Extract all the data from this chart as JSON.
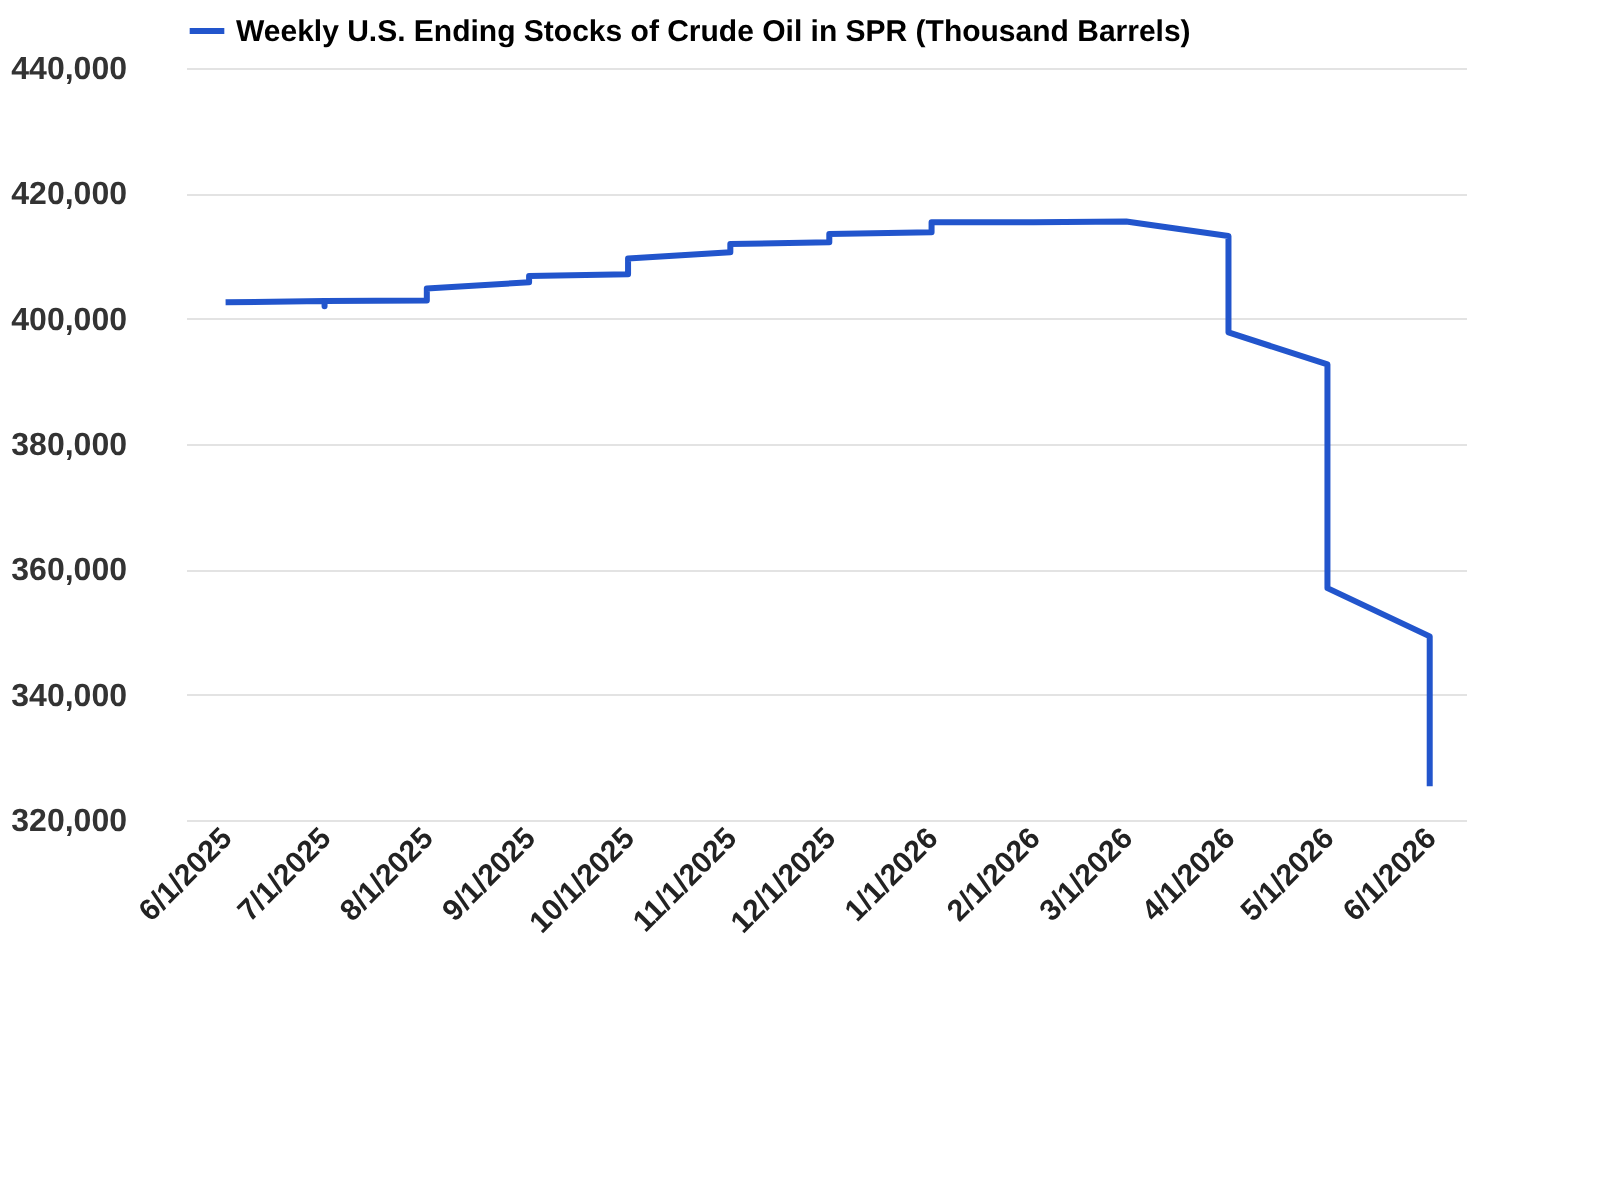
{
  "chart_data": {
    "type": "line",
    "legend": "top left",
    "grid": "y",
    "line_style": "solid",
    "marker": "none",
    "x": [
      "2025-06-01",
      "2025-07-01",
      "2025-07-01",
      "2025-07-01",
      "2025-08-01",
      "2025-08-01",
      "2025-09-01",
      "2025-09-01",
      "2025-10-01",
      "2025-10-01",
      "2025-11-01",
      "2025-11-01",
      "2025-12-01",
      "2025-12-01",
      "2026-01-01",
      "2026-01-01",
      "2026-02-01",
      "2026-03-01",
      "2026-04-01",
      "2026-04-01",
      "2026-05-01",
      "2026-05-01",
      "2026-06-01",
      "2026-06-01"
    ],
    "series": [
      {
        "name": "Weekly U.S. Ending Stocks of Crude Oil in SPR  (Thousand Barrels)",
        "color": "#2255cc",
        "values": [
          402600,
          402800,
          402000,
          402800,
          402900,
          404800,
          405800,
          406800,
          407100,
          409600,
          410600,
          411900,
          412200,
          413500,
          413800,
          415400,
          415400,
          415500,
          413200,
          397800,
          392700,
          357000,
          349300,
          325400
        ]
      }
    ],
    "xlim": [
      "2025-05-20",
      "2026-06-12"
    ],
    "xticks": [
      {
        "value": "2025-06-01",
        "label": "6/1/2025"
      },
      {
        "value": "2025-07-01",
        "label": "7/1/2025"
      },
      {
        "value": "2025-08-01",
        "label": "8/1/2025"
      },
      {
        "value": "2025-09-01",
        "label": "9/1/2025"
      },
      {
        "value": "2025-10-01",
        "label": "10/1/2025"
      },
      {
        "value": "2025-11-01",
        "label": "11/1/2025"
      },
      {
        "value": "2025-12-01",
        "label": "12/1/2025"
      },
      {
        "value": "2026-01-01",
        "label": "1/1/2026"
      },
      {
        "value": "2026-02-01",
        "label": "2/1/2026"
      },
      {
        "value": "2026-03-01",
        "label": "3/1/2026"
      },
      {
        "value": "2026-04-01",
        "label": "4/1/2026"
      },
      {
        "value": "2026-05-01",
        "label": "5/1/2026"
      },
      {
        "value": "2026-06-01",
        "label": "6/1/2026"
      }
    ],
    "ylim": [
      320000,
      440000
    ],
    "yticks": [
      {
        "value": 320000,
        "label": "320,000"
      },
      {
        "value": 340000,
        "label": "340,000"
      },
      {
        "value": 360000,
        "label": "360,000"
      },
      {
        "value": 380000,
        "label": "380,000"
      },
      {
        "value": 400000,
        "label": "400,000"
      },
      {
        "value": 420000,
        "label": "420,000"
      },
      {
        "value": 440000,
        "label": "440,000"
      }
    ]
  }
}
